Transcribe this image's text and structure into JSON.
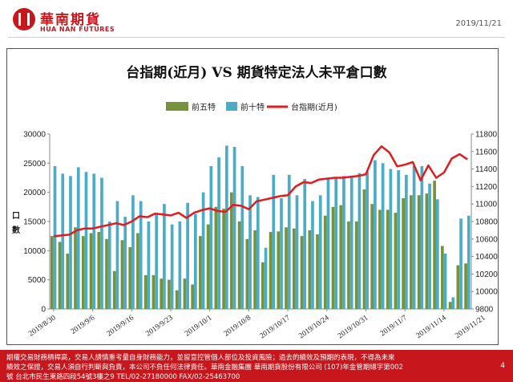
{
  "header": {
    "logo_cn": "華南期貨",
    "logo_en": "HUA NAN FUTURES",
    "date": "2019/11/21"
  },
  "footer": {
    "line1": "期權交易財務槓桿高，交易人請慎重考量自身財務能力，並留意控管個人部位及投資風險；過去的績效及預期的表現，不得為未來",
    "line2": "績效之保證，交易人須自行判斷與負責，本公司不負任何法律責任。華南金融集團 華南期貨股份有限公司 (107)年金管期總字第002",
    "line3": "號 台北市民生東路四段54號3樓之9 TEL/02-27180000 FAX/02-25463700",
    "page": "4"
  },
  "colors": {
    "brand": "#c8161d",
    "front5": "#76933c",
    "front10": "#4bacc6",
    "index": "#e41a1c"
  },
  "chart_data": {
    "type": "bar",
    "title": "台指期(近月) VS 期貨特定法人未平倉口數",
    "ylabel": "口數",
    "ylim_left": [
      0,
      30000
    ],
    "left_ticks": [
      "0",
      "5000",
      "10000",
      "15000",
      "20000",
      "25000",
      "30000"
    ],
    "ylim_right": [
      9800,
      11800
    ],
    "right_ticks": [
      "9800",
      "10000",
      "10200",
      "10400",
      "10600",
      "10800",
      "11000",
      "11200",
      "11400",
      "11600",
      "11800"
    ],
    "x_tick_labels": [
      "2019/8/30",
      "2019/9/6",
      "2019/9/16",
      "2019/9/23",
      "2019/10/1",
      "2019/10/8",
      "2019/10/17",
      "2019/10/24",
      "2019/10/31",
      "2019/11/7",
      "2019/11/14",
      "2019/11/21"
    ],
    "x_tick_every": 5,
    "legend": [
      "前五特",
      "前十特",
      "台指期(近月)"
    ],
    "legend_position": "top",
    "series": [
      {
        "name": "前五特",
        "type": "bar",
        "values": [
          12500,
          11500,
          9500,
          14000,
          12500,
          13000,
          13200,
          12000,
          6500,
          11800,
          10600,
          13000,
          5800,
          5800,
          5200,
          5000,
          3200,
          5200,
          4200,
          12500,
          14500,
          17500,
          17200,
          20000,
          15000,
          12000,
          13500,
          8000,
          13200,
          13300,
          14000,
          13800,
          12500,
          13500,
          12800,
          16000,
          17500,
          17800,
          15000,
          15000,
          20500,
          18000,
          17000,
          17000,
          16500,
          19000,
          19500,
          19500,
          19800,
          22000,
          10800,
          1200,
          7500,
          7800
        ]
      },
      {
        "name": "前十特",
        "type": "bar",
        "values": [
          24500,
          23200,
          22800,
          24300,
          23500,
          23200,
          22500,
          15000,
          18500,
          15800,
          19500,
          18500,
          15000,
          16200,
          18000,
          14500,
          15000,
          18200,
          16300,
          20000,
          24500,
          26000,
          28000,
          27800,
          24500,
          19500,
          19200,
          10500,
          23000,
          19000,
          23000,
          19500,
          22300,
          18500,
          19500,
          22300,
          22500,
          22800,
          22800,
          23300,
          23500,
          25500,
          25000,
          24000,
          23800,
          23000,
          24500,
          24500,
          21500,
          18800,
          9500,
          2000,
          15500,
          16000
        ]
      },
      {
        "name": "台指期(近月)",
        "type": "line",
        "axis": "right",
        "values": [
          10630,
          10640,
          10650,
          10700,
          10720,
          10720,
          10740,
          10760,
          10780,
          10760,
          10800,
          10860,
          10850,
          10890,
          10880,
          10870,
          10900,
          10840,
          10900,
          10930,
          10950,
          10920,
          10910,
          10990,
          10980,
          10940,
          11030,
          11050,
          11070,
          11090,
          11100,
          11200,
          11250,
          11240,
          11280,
          11290,
          11300,
          11300,
          11310,
          11320,
          11340,
          11560,
          11660,
          11590,
          11430,
          11450,
          11480,
          11270,
          11440,
          11300,
          11360,
          11520,
          11570,
          11510
        ]
      }
    ]
  }
}
